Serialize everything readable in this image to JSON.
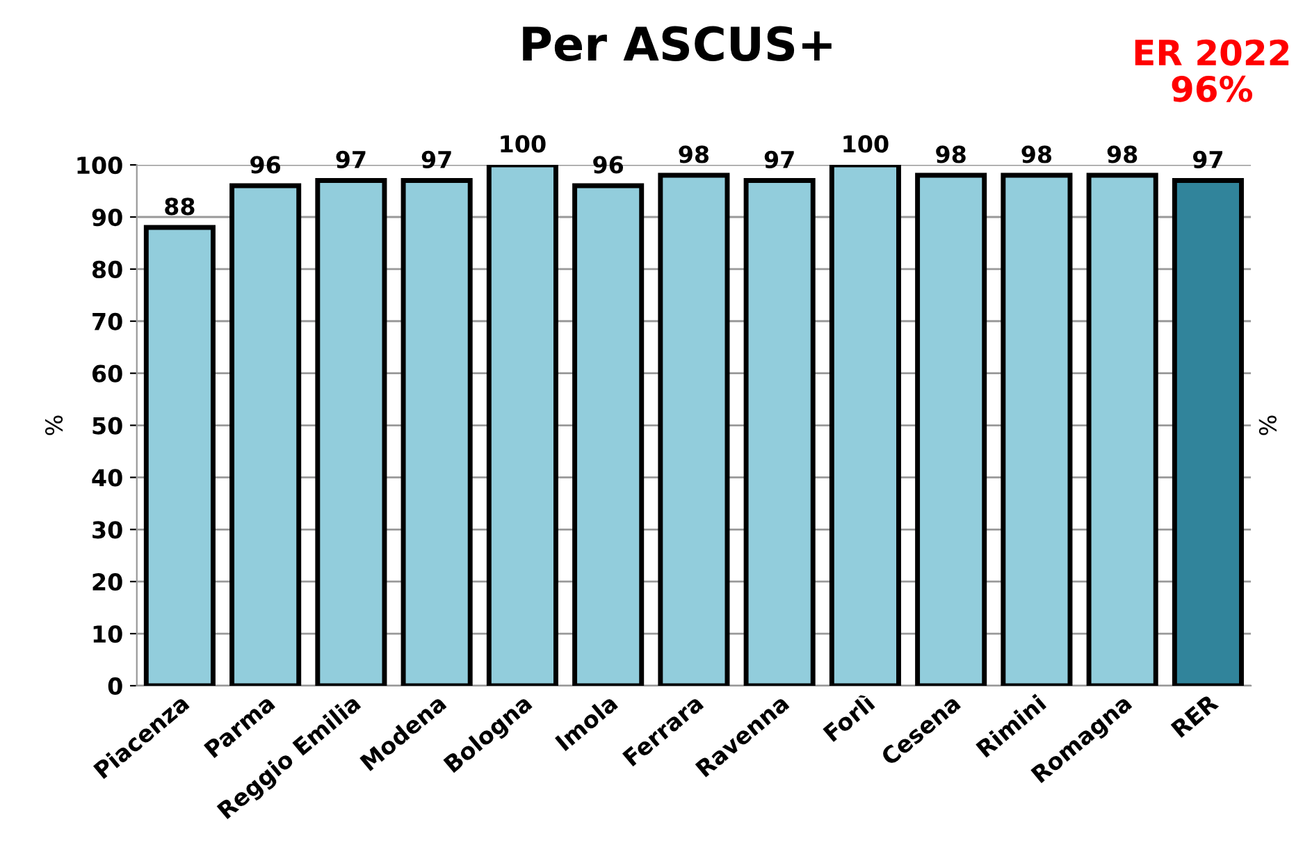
{
  "chart_data": {
    "type": "bar",
    "title": "Per ASCUS+",
    "categories": [
      "Piacenza",
      "Parma",
      "Reggio Emilia",
      "Modena",
      "Bologna",
      "Imola",
      "Ferrara",
      "Ravenna",
      "Forlì",
      "Cesena",
      "Rimini",
      "Romagna",
      "RER"
    ],
    "values": [
      88,
      96,
      97,
      97,
      100,
      96,
      98,
      97,
      100,
      98,
      98,
      98,
      97
    ],
    "colors": [
      "#92cddc",
      "#92cddc",
      "#92cddc",
      "#92cddc",
      "#92cddc",
      "#92cddc",
      "#92cddc",
      "#92cddc",
      "#92cddc",
      "#92cddc",
      "#92cddc",
      "#92cddc",
      "#31849b"
    ],
    "ylabel": "%",
    "y2label": "%",
    "ylim": [
      0,
      100
    ],
    "yticks": [
      0,
      10,
      20,
      30,
      40,
      50,
      60,
      70,
      80,
      90,
      100
    ],
    "grid": "y",
    "data_labels": true,
    "annotations": [
      "ER 2022\n96%"
    ]
  }
}
